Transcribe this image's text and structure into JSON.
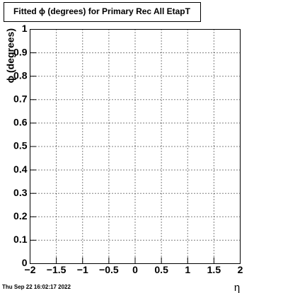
{
  "chart_data": {
    "type": "scatter",
    "title": "Fitted ϕ (degrees) for Primary Rec All EtapT",
    "x_label": "η",
    "y_label": "ϕ (degrees)",
    "timestamp": "Thu Sep 22 16:02:17 2022",
    "series": [],
    "xlim": [
      -2,
      2
    ],
    "xticks": [
      {
        "value": -2,
        "label": "−2"
      },
      {
        "value": -1.5,
        "label": "−1.5"
      },
      {
        "value": -1,
        "label": "−1"
      },
      {
        "value": -0.5,
        "label": "−0.5"
      },
      0,
      0.5,
      1,
      1.5,
      2
    ],
    "ylim": [
      0,
      1
    ],
    "yticks": [
      0,
      0.1,
      0.2,
      0.3,
      0.4,
      0.5,
      0.6,
      0.7,
      0.8,
      0.9,
      1
    ],
    "grid": true
  }
}
